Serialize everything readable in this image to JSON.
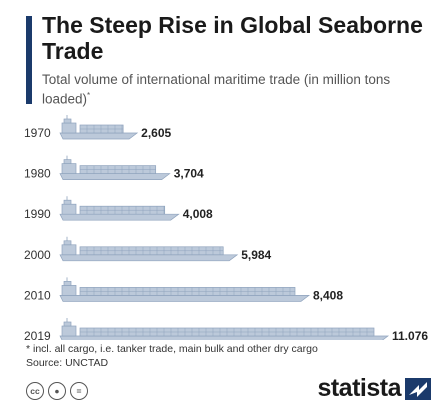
{
  "title": "The Steep Rise in Global Seaborne Trade",
  "subtitle": "Total volume of international maritime trade (in million tons loaded)",
  "subtitle_marker": "*",
  "footnote": "* incl. all cargo, i.e. tanker trade, main bulk and other dry cargo",
  "source": "Source: UNCTAD",
  "logo": "statista",
  "license_icons": [
    "cc-icon",
    "by-icon",
    "nd-icon"
  ],
  "colors": {
    "ship": "#bcc9da",
    "ship_dark": "#8fa3bd",
    "accent": "#1b3a6b",
    "text": "#333333"
  },
  "chart_data": {
    "type": "bar",
    "orientation": "horizontal",
    "mark": "cargo-ship",
    "categories": [
      "1970",
      "1980",
      "1990",
      "2000",
      "2010",
      "2019"
    ],
    "values": [
      2605,
      3704,
      4008,
      5984,
      8408,
      11076
    ],
    "value_labels": [
      "2,605",
      "3,704",
      "4,008",
      "5,984",
      "8,408",
      "11,076"
    ],
    "title": "The Steep Rise in Global Seaborne Trade",
    "xlabel": "",
    "ylabel": "",
    "xlim": [
      0,
      11076
    ],
    "grid": false,
    "legend": "none"
  }
}
